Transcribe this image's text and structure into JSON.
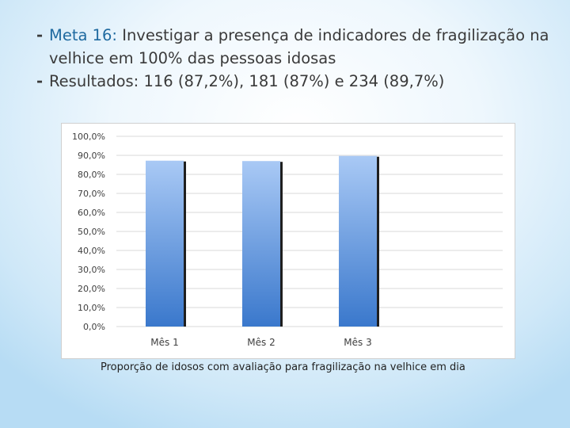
{
  "bullets": [
    {
      "accent": "Meta 16:",
      "text": " Investigar a presença de indicadores de fragilização na velhice em 100% das pessoas idosas"
    },
    {
      "accent": "",
      "text": "Resultados: 116 (87,2%), 181 (87%) e 234 (89,7%)"
    }
  ],
  "caption": "Proporção de idosos com avaliação para fragilização na velhice em dia",
  "colors": {
    "bar_top": "#a9c9f5",
    "bar_bottom": "#3a78cc",
    "bar_shadow": "#1f1f1f",
    "grid": "#d9d9d9"
  },
  "chart_data": {
    "type": "bar",
    "categories": [
      "Mês 1",
      "Mês 2",
      "Mês 3",
      ""
    ],
    "values": [
      87.2,
      87.0,
      89.7,
      null
    ],
    "ylim": [
      0,
      100
    ],
    "yticks": [
      0,
      10,
      20,
      30,
      40,
      50,
      60,
      70,
      80,
      90,
      100
    ],
    "ytick_labels": [
      "0,0%",
      "10,0%",
      "20,0%",
      "30,0%",
      "40,0%",
      "50,0%",
      "60,0%",
      "70,0%",
      "80,0%",
      "90,0%",
      "100,0%"
    ],
    "title": "",
    "xlabel": "",
    "ylabel": "",
    "grid": true,
    "legend": "none"
  }
}
